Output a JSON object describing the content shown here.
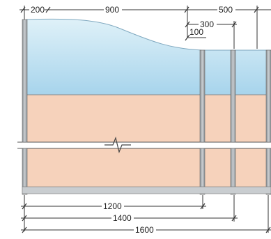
{
  "dimensions": {
    "top": {
      "a": "200",
      "b": "900",
      "c": "500",
      "d": "300",
      "e": "100"
    },
    "bottom": {
      "a": "1200",
      "b": "1400",
      "c": "1600"
    }
  },
  "colors": {
    "glass_top": "#d9eef7",
    "glass_bottom": "#a9d6ee",
    "panel": "#f6d2bb",
    "frame": "#a9aeb2",
    "frame_dark": "#7f858a",
    "line": "#333333"
  }
}
